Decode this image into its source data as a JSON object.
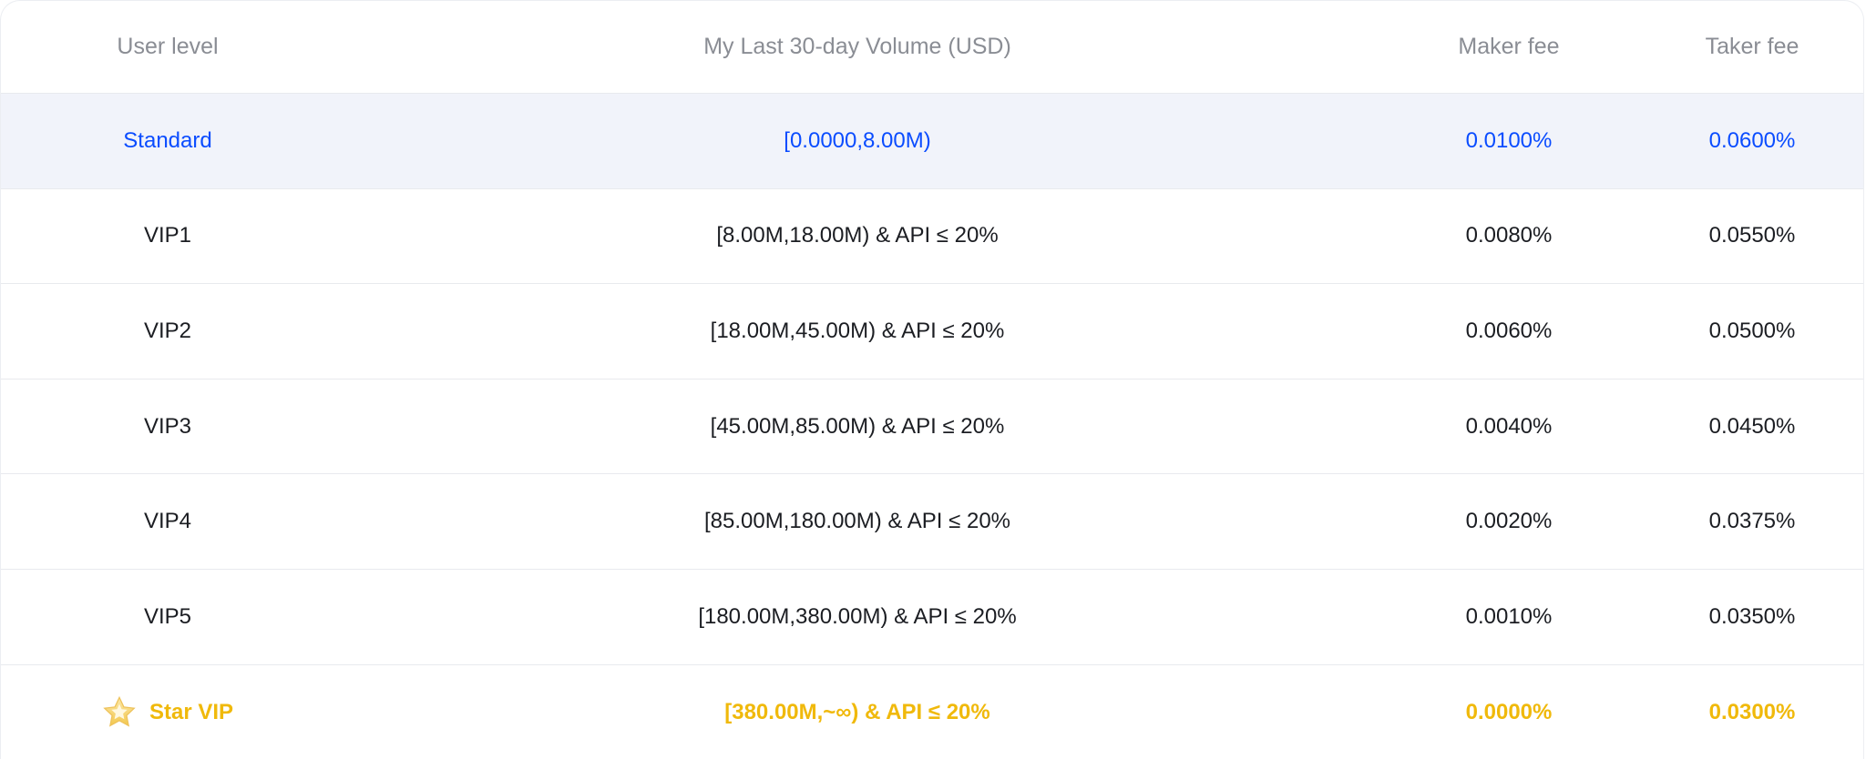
{
  "headers": {
    "level": "User level",
    "volume": "My Last 30-day Volume (USD)",
    "maker": "Maker fee",
    "taker": "Taker fee"
  },
  "rows": [
    {
      "level": "Standard",
      "volume": "[0.0000,8.00M)",
      "maker": "0.0100%",
      "taker": "0.0600%"
    },
    {
      "level": "VIP1",
      "volume": "[8.00M,18.00M) & API ≤ 20%",
      "maker": "0.0080%",
      "taker": "0.0550%"
    },
    {
      "level": "VIP2",
      "volume": "[18.00M,45.00M) & API ≤ 20%",
      "maker": "0.0060%",
      "taker": "0.0500%"
    },
    {
      "level": "VIP3",
      "volume": "[45.00M,85.00M) & API ≤ 20%",
      "maker": "0.0040%",
      "taker": "0.0450%"
    },
    {
      "level": "VIP4",
      "volume": "[85.00M,180.00M) & API ≤ 20%",
      "maker": "0.0020%",
      "taker": "0.0375%"
    },
    {
      "level": "VIP5",
      "volume": "[180.00M,380.00M) & API ≤ 20%",
      "maker": "0.0010%",
      "taker": "0.0350%"
    },
    {
      "level": "Star VIP",
      "volume": "[380.00M,~∞) & API ≤ 20%",
      "maker": "0.0000%",
      "taker": "0.0300%",
      "icon": "star-icon"
    }
  ],
  "colors": {
    "current": "#0a4cff",
    "star": "#f0b90b",
    "header": "#8a8d94"
  }
}
